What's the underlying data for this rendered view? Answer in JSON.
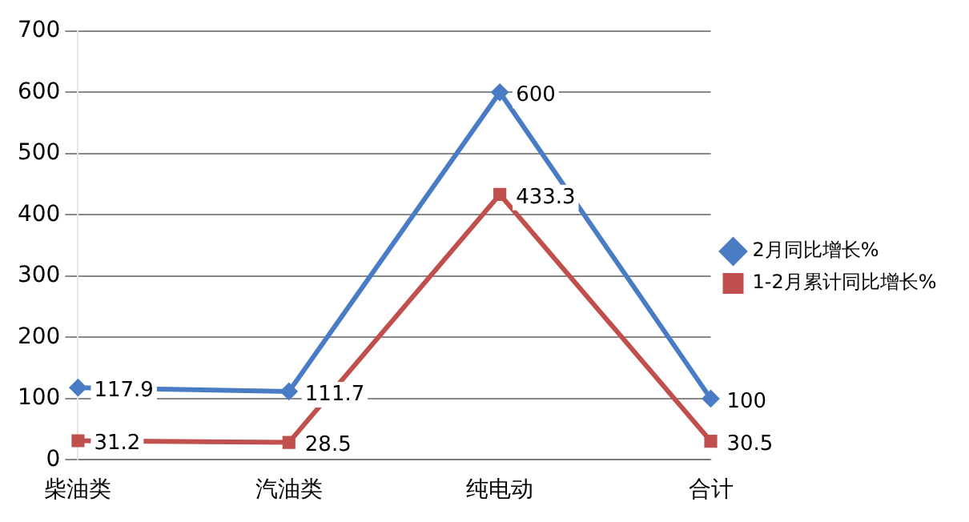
{
  "chart_data": {
    "type": "line",
    "categories": [
      "柴油类",
      "汽油类",
      "纯电动",
      "合计"
    ],
    "series": [
      {
        "name": "2月同比增长%",
        "color": "#4a7cc4",
        "marker": "diamond",
        "values": [
          117.9,
          111.7,
          600,
          100
        ]
      },
      {
        "name": "1-2月累计同比增长%",
        "color": "#c0504d",
        "marker": "square",
        "values": [
          31.2,
          28.5,
          433.3,
          30.5
        ]
      }
    ],
    "ylim": [
      0,
      700
    ],
    "yticks": [
      0,
      100,
      200,
      300,
      400,
      500,
      600,
      700
    ],
    "grid": "y",
    "legend": "right",
    "data_labels": true
  }
}
